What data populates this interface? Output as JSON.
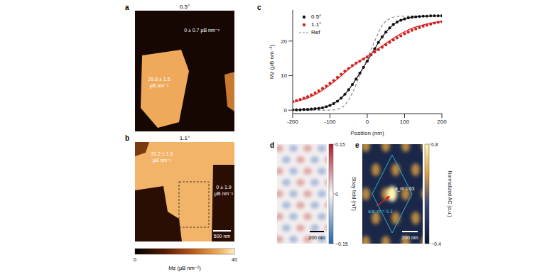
{
  "chart_data": {
    "panel_label": "c",
    "type": "scatter",
    "x_label": "Position (nm)",
    "y_label": "Mz (μB nm⁻²)",
    "xlim": [
      -200,
      200
    ],
    "xticks": [
      -200,
      -100,
      0,
      100,
      200
    ],
    "ylim": [
      -1,
      29
    ],
    "yticks": [
      0,
      10,
      20
    ],
    "legend": "top-left",
    "series": [
      {
        "name": "0.5°",
        "color": "#111111",
        "type": "scatter",
        "marker": "circle",
        "x": [
          -200,
          -190,
          -180,
          -170,
          -160,
          -150,
          -140,
          -130,
          -120,
          -110,
          -100,
          -90,
          -80,
          -70,
          -60,
          -50,
          -40,
          -30,
          -20,
          -10,
          0,
          10,
          20,
          30,
          40,
          50,
          60,
          70,
          80,
          90,
          100,
          110,
          120,
          130,
          140,
          150,
          160,
          170,
          180,
          190,
          200
        ],
        "values": [
          0.1,
          0.1,
          0.1,
          0.2,
          0.2,
          0.3,
          0.4,
          0.5,
          0.7,
          1.0,
          1.4,
          1.9,
          2.6,
          3.5,
          4.6,
          5.9,
          7.4,
          9.0,
          10.7,
          12.4,
          14.2,
          16.0,
          17.8,
          19.6,
          21.2,
          22.6,
          23.8,
          24.8,
          25.5,
          26.0,
          26.4,
          26.7,
          26.9,
          27.0,
          27.1,
          27.2,
          27.2,
          27.3,
          27.3,
          27.3,
          27.3
        ]
      },
      {
        "name": "1.1°",
        "color": "#d42020",
        "type": "scatter",
        "marker": "circle",
        "x": [
          -200,
          -190,
          -180,
          -170,
          -160,
          -150,
          -140,
          -130,
          -120,
          -110,
          -100,
          -90,
          -80,
          -70,
          -60,
          -50,
          -40,
          -30,
          -20,
          -10,
          0,
          10,
          20,
          30,
          40,
          50,
          60,
          70,
          80,
          90,
          100,
          110,
          120,
          130,
          140,
          150,
          160,
          170,
          180,
          190,
          200
        ],
        "values": [
          2.5,
          2.8,
          3.1,
          3.5,
          3.9,
          4.4,
          5.0,
          5.6,
          6.3,
          7.0,
          7.8,
          8.6,
          9.5,
          10.4,
          11.3,
          12.1,
          12.9,
          13.6,
          14.2,
          14.8,
          15.4,
          16.1,
          16.8,
          17.5,
          18.2,
          18.9,
          19.6,
          20.3,
          20.9,
          21.5,
          22.1,
          22.6,
          23.1,
          23.5,
          23.9,
          24.3,
          24.6,
          24.9,
          25.2,
          25.4,
          25.6
        ]
      },
      {
        "color": "#111111",
        "type": "line",
        "line_style": "solid",
        "x": [
          -200,
          -180,
          -160,
          -140,
          -120,
          -100,
          -80,
          -60,
          -40,
          -20,
          0,
          20,
          40,
          60,
          80,
          100,
          120,
          140,
          160,
          180,
          200
        ],
        "values": [
          0.1,
          0.1,
          0.2,
          0.4,
          0.7,
          1.4,
          2.6,
          4.6,
          7.4,
          10.7,
          14.2,
          17.8,
          21.2,
          23.8,
          25.5,
          26.4,
          26.9,
          27.1,
          27.2,
          27.3,
          27.3
        ]
      },
      {
        "color": "#d42020",
        "type": "line",
        "line_style": "solid",
        "x": [
          -200,
          -180,
          -160,
          -140,
          -120,
          -100,
          -80,
          -60,
          -40,
          -20,
          0,
          20,
          40,
          60,
          80,
          100,
          120,
          140,
          160,
          180,
          200
        ],
        "values": [
          2.2,
          2.8,
          3.5,
          4.5,
          5.8,
          7.3,
          9.0,
          10.9,
          12.7,
          14.3,
          15.6,
          17.1,
          18.6,
          20.1,
          21.5,
          22.7,
          23.7,
          24.4,
          25.0,
          25.4,
          25.7
        ]
      },
      {
        "name": "Ref",
        "color": "#888888",
        "type": "line",
        "line_style": "dashed",
        "x": [
          -200,
          -100,
          -80,
          -60,
          -40,
          -20,
          0,
          20,
          40,
          60,
          80,
          100,
          200
        ],
        "values": [
          0,
          0,
          0.3,
          1.5,
          5,
          10,
          15,
          20,
          24.5,
          26.5,
          27.1,
          27.2,
          27.2
        ]
      }
    ]
  },
  "panels": [
    {
      "panel_label": "a",
      "title": "0.5°",
      "texts": [
        [
          "0 ± 0.7 μB nm⁻²"
        ],
        [
          "29.8 ± 1.5",
          "μB nm⁻²"
        ]
      ]
    },
    {
      "panel_label": "b",
      "title": "1.1°",
      "texts": [
        [
          "31.2 ± 1.6",
          "μB nm⁻²"
        ],
        [
          "0 ± 1.9",
          "μB nm⁻²"
        ]
      ],
      "scale_bar": "500 nm",
      "colorbar": {
        "label": "Mz (μB nm⁻²)",
        "range": [
          0,
          40
        ],
        "ticks": [
          0,
          40
        ]
      }
    },
    {
      "panel_label": "d",
      "scale_bar": "200 nm",
      "colorbar": {
        "label": "Stray field (mT)",
        "range": [
          -0.15,
          0.15
        ],
        "ticks": [
          {
            "value": -0.15,
            "label": "−0.15"
          },
          0,
          0.15
        ]
      }
    },
    {
      "panel_label": "e",
      "scale_bar": "200 nm",
      "texts": [
        [
          "a_m = 63"
        ],
        [
          "a/a_m = 9.3"
        ]
      ],
      "colorbar": {
        "label": "Normalized AC (a.u.)",
        "range": [
          -0.4,
          0.8
        ],
        "ticks": [
          {
            "value": -0.4,
            "label": "−0.4"
          },
          0.8
        ]
      }
    }
  ]
}
